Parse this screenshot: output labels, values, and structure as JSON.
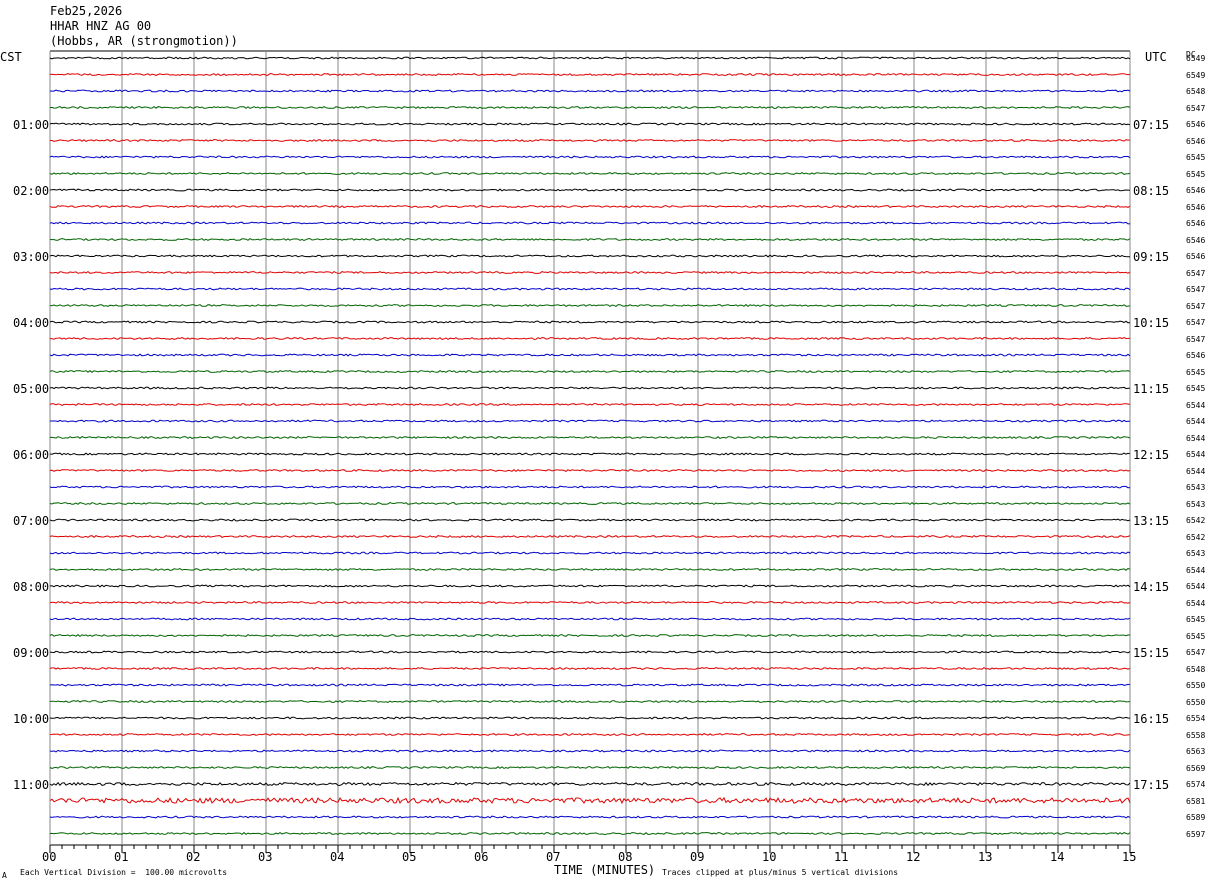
{
  "header": {
    "date": "Feb25,2026",
    "station": "HHAR HNZ AG 00",
    "location": "(Hobbs, AR (strongmotion))"
  },
  "left_tz": "CST",
  "right_tz": "UTC",
  "dc_label": "DC",
  "footer": {
    "scale_note": "Each Vertical Division =  100.00 microvolts",
    "xlabel": "TIME (MINUTES)",
    "clip_note": "Traces clipped at plus/minus 5 vertical divisions",
    "corner_mark": "A"
  },
  "chart_data": {
    "type": "line",
    "xlabel": "TIME (MINUTES)",
    "x_ticks": [
      "00",
      "01",
      "02",
      "03",
      "04",
      "05",
      "06",
      "07",
      "08",
      "09",
      "10",
      "11",
      "12",
      "13",
      "14",
      "15"
    ],
    "xlim": [
      0,
      15
    ],
    "left_hour_labels": [
      "01:00",
      "02:00",
      "03:00",
      "04:00",
      "05:00",
      "06:00",
      "07:00",
      "08:00",
      "09:00",
      "10:00",
      "11:00"
    ],
    "right_hour_labels": [
      "07:15",
      "08:15",
      "09:15",
      "10:15",
      "11:15",
      "12:15",
      "13:15",
      "14:15",
      "15:15",
      "16:15",
      "17:15"
    ],
    "trace_colors": [
      "#000000",
      "#e00000",
      "#0000c8",
      "#006400"
    ],
    "dc_offsets": [
      "6549",
      "6549",
      "6548",
      "6547",
      "6546",
      "6546",
      "6545",
      "6545",
      "6546",
      "6546",
      "6546",
      "6546",
      "6546",
      "6547",
      "6547",
      "6547",
      "6547",
      "6547",
      "6546",
      "6545",
      "6545",
      "6544",
      "6544",
      "6544",
      "6544",
      "6544",
      "6543",
      "6543",
      "6542",
      "6542",
      "6543",
      "6544",
      "6544",
      "6544",
      "6545",
      "6545",
      "6547",
      "6548",
      "6550",
      "6550",
      "6554",
      "6558",
      "6563",
      "6569",
      "6574",
      "6581",
      "6589",
      "6597"
    ],
    "grid": true
  }
}
